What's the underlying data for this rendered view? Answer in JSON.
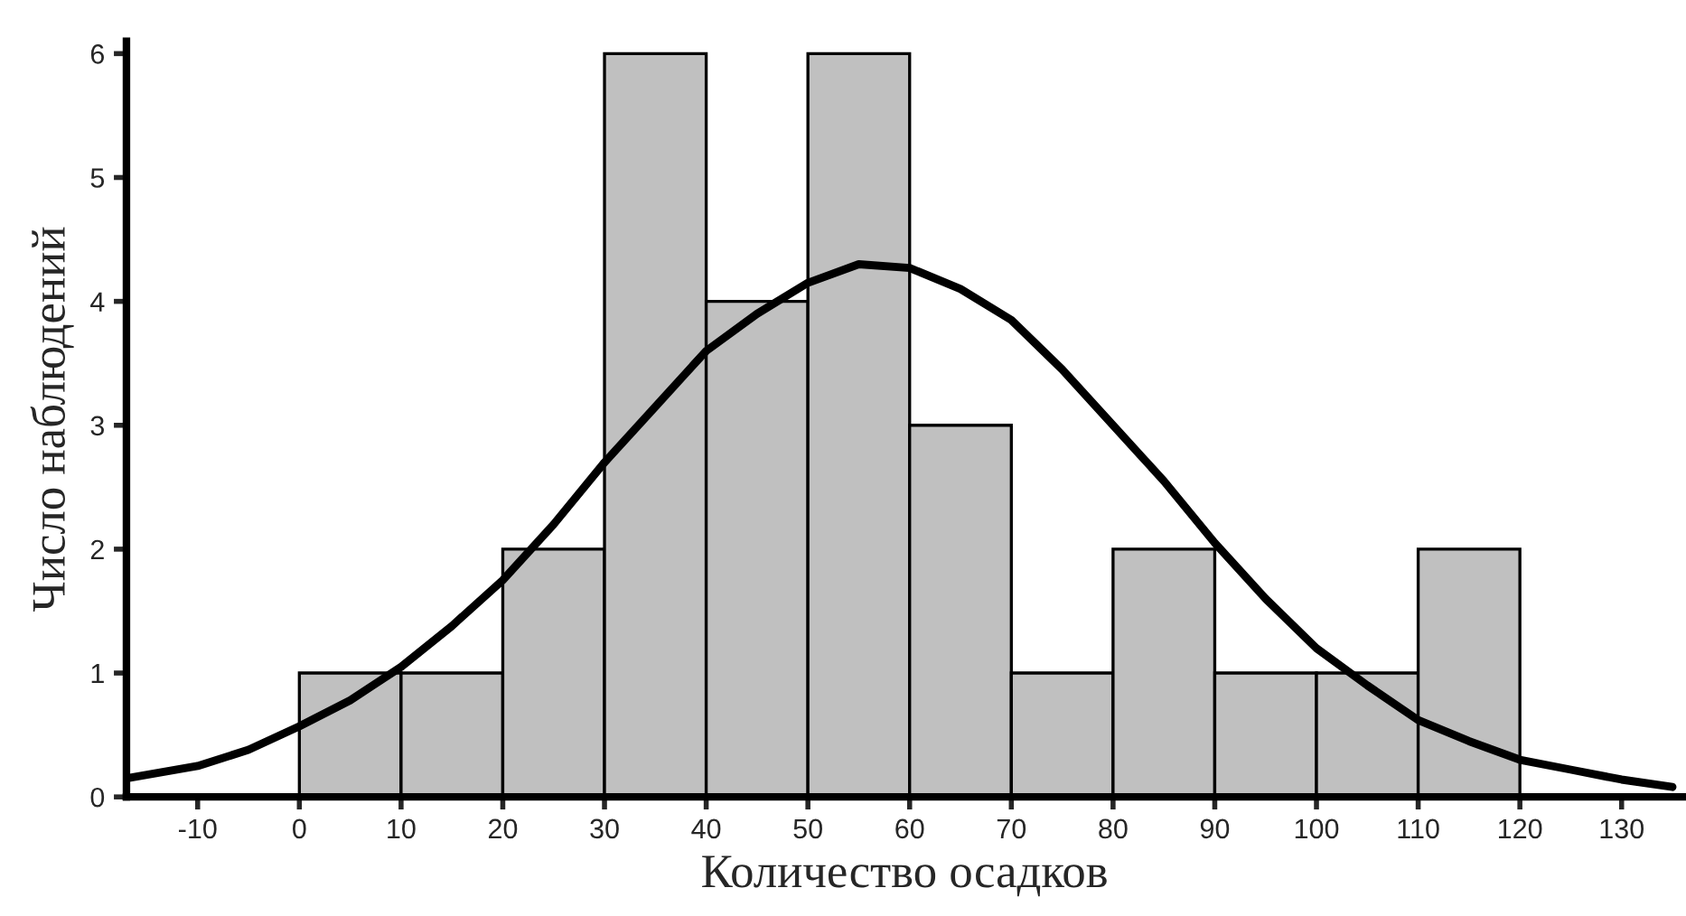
{
  "chart_data": {
    "type": "histogram",
    "xlabel": "Количество осадков",
    "ylabel": "Число наблюдений",
    "bins": [
      0,
      10,
      20,
      30,
      40,
      50,
      60,
      70,
      80,
      90,
      100,
      110,
      120
    ],
    "values": [
      1,
      1,
      2,
      6,
      4,
      6,
      3,
      1,
      2,
      1,
      1,
      2
    ],
    "color": "#c0c0c0",
    "series": [
      {
        "type": "line",
        "color": "#000000",
        "x": [
          -17,
          -10,
          -5,
          0,
          5,
          10,
          15,
          20,
          25,
          30,
          35,
          40,
          45,
          50,
          55,
          60,
          65,
          70,
          75,
          80,
          85,
          90,
          95,
          100,
          105,
          110,
          115,
          120,
          125,
          130,
          135
        ],
        "values": [
          0.15,
          0.25,
          0.38,
          0.57,
          0.78,
          1.05,
          1.38,
          1.75,
          2.2,
          2.7,
          3.15,
          3.6,
          3.9,
          4.15,
          4.3,
          4.27,
          4.1,
          3.85,
          3.45,
          3.0,
          2.55,
          2.05,
          1.6,
          1.2,
          0.9,
          0.62,
          0.45,
          0.3,
          0.22,
          0.14,
          0.08
        ]
      }
    ],
    "xlim": [
      -17,
      136
    ],
    "ylim": [
      0,
      6.1
    ],
    "xticks": [
      -10,
      0,
      10,
      20,
      30,
      40,
      50,
      60,
      70,
      80,
      90,
      100,
      110,
      120,
      130
    ],
    "yticks": [
      0,
      1,
      2,
      3,
      4,
      5,
      6
    ],
    "grid": false,
    "legend": false
  }
}
